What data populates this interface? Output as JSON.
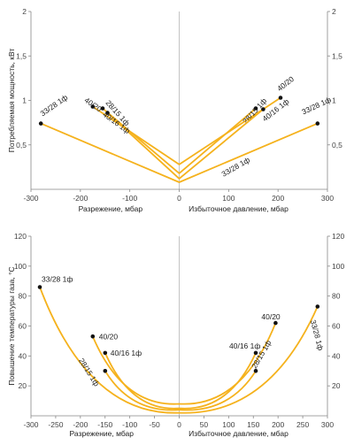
{
  "colors": {
    "curve": "#f5b21d",
    "point": "#111111",
    "axis": "#888888",
    "text": "#222222"
  },
  "chart_data": [
    {
      "type": "line",
      "ylabel": "Потребляемая мощность, кВт",
      "xlabels": [
        "Разрежение, мбар",
        "Избыточное давление, мбар"
      ],
      "xlim": [
        -300,
        300
      ],
      "ylim": [
        0,
        2
      ],
      "x_ticks": [
        -300,
        -200,
        -100,
        0,
        100,
        200,
        300
      ],
      "x_tick_labels": [
        "-300",
        "-200",
        "-100",
        "0",
        "100",
        "200",
        "300"
      ],
      "y_ticks": [
        0.5,
        1,
        1.5,
        2
      ],
      "y_tick_labels": [
        "0,5",
        "1",
        "1,5",
        "2"
      ],
      "grid": false,
      "series": [
        {
          "name": "33/28 1ф",
          "x": [
            -280,
            0,
            280
          ],
          "y": [
            0.74,
            0.08,
            0.74
          ],
          "labels": [
            "33/28 1ф",
            "33/28 1ф",
            "33/28 1ф"
          ],
          "label_index": [
            0,
            1,
            2
          ]
        },
        {
          "name": "40/20",
          "x": [
            -175,
            0,
            205
          ],
          "y": [
            0.93,
            0.28,
            1.03
          ],
          "labels": [
            "40/20",
            "40/20"
          ],
          "label_index": [
            0,
            2
          ]
        },
        {
          "name": "28/15 1ф",
          "x": [
            -155,
            0,
            155
          ],
          "y": [
            0.91,
            0.18,
            0.91
          ],
          "labels": [
            "28/15 1ф",
            "28/15 1ф"
          ],
          "label_index": [
            0,
            2
          ]
        },
        {
          "name": "40/16 1ф",
          "x": [
            -145,
            0,
            170
          ],
          "y": [
            0.86,
            0.12,
            0.9
          ],
          "labels": [
            "40/16 1ф",
            "40/16 1ф"
          ],
          "label_index": [
            0,
            2
          ]
        }
      ]
    },
    {
      "type": "line",
      "ylabel": "Повышение температуры газа, °C",
      "xlabels": [
        "Разрежение, мбар",
        "Избыточное давление, мбар"
      ],
      "xlim": [
        -300,
        300
      ],
      "ylim": [
        0,
        120
      ],
      "x_ticks": [
        -300,
        -250,
        -200,
        -150,
        -100,
        -50,
        0,
        50,
        100,
        150,
        200,
        250,
        300
      ],
      "x_tick_labels": [
        "-300",
        "-250",
        "-200",
        "-150",
        "-100",
        "-50",
        "0",
        "50",
        "100",
        "150",
        "200",
        "250",
        "300"
      ],
      "y_ticks": [
        20,
        40,
        60,
        80,
        100,
        120
      ],
      "y_tick_labels": [
        "20",
        "40",
        "60",
        "80",
        "100",
        "120"
      ],
      "grid": false,
      "series": [
        {
          "name": "33/28 1ф",
          "x": [
            -282,
            0,
            280
          ],
          "y": [
            86,
            2,
            73
          ],
          "labels": [
            "33/28 1ф",
            "33/28 1ф"
          ],
          "label_index": [
            0,
            2
          ]
        },
        {
          "name": "40/20",
          "x": [
            -175,
            0,
            195
          ],
          "y": [
            53,
            8,
            62
          ],
          "labels": [
            "40/20",
            "40/20"
          ],
          "label_index": [
            0,
            2
          ]
        },
        {
          "name": "40/16 1ф",
          "x": [
            -150,
            0,
            155
          ],
          "y": [
            42,
            5,
            42
          ],
          "labels": [
            "40/16 1ф",
            "40/16 1ф"
          ],
          "label_index": [
            0,
            2
          ]
        },
        {
          "name": "28/15 1ф",
          "x": [
            -150,
            0,
            155
          ],
          "y": [
            30,
            4,
            30
          ],
          "labels": [
            "28/15 1ф",
            "28/15 1ф"
          ],
          "label_index": [
            0,
            2
          ]
        }
      ]
    }
  ]
}
